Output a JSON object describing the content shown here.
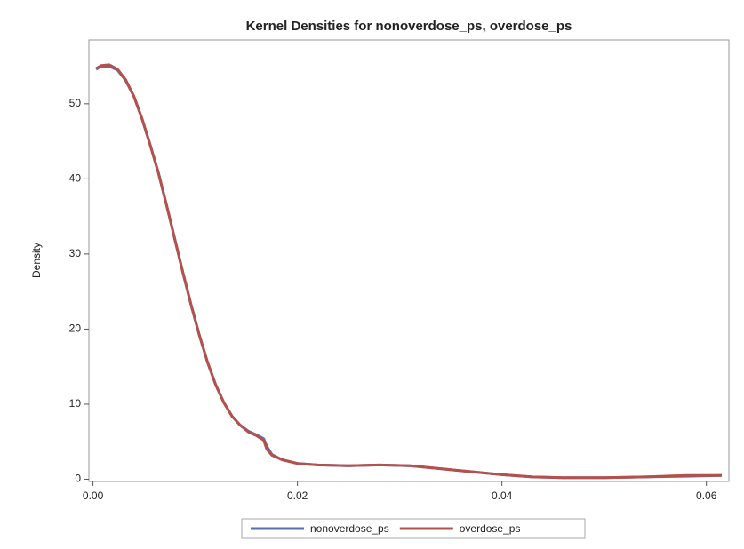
{
  "chart_data": {
    "type": "line",
    "title": "Kernel Densities for nonoverdose_ps, overdose_ps",
    "y_label": "Density",
    "x": [
      0.0003,
      0.0008,
      0.0016,
      0.0024,
      0.0032,
      0.004,
      0.0048,
      0.0056,
      0.0064,
      0.0072,
      0.008,
      0.0088,
      0.0096,
      0.0104,
      0.0112,
      0.012,
      0.0128,
      0.0136,
      0.0144,
      0.0152,
      0.016,
      0.0167,
      0.017,
      0.0175,
      0.0185,
      0.02,
      0.022,
      0.025,
      0.028,
      0.031,
      0.034,
      0.037,
      0.04,
      0.043,
      0.046,
      0.05,
      0.054,
      0.058,
      0.0615
    ],
    "series": [
      {
        "name": "nonoverdose_ps",
        "color": "#5a6fad",
        "values": [
          54.6,
          55.0,
          55.0,
          54.5,
          53.1,
          51.0,
          48.0,
          44.5,
          40.8,
          36.5,
          32.0,
          27.5,
          23.2,
          19.2,
          15.6,
          12.6,
          10.2,
          8.4,
          7.2,
          6.4,
          5.9,
          5.4,
          4.4,
          3.3,
          2.6,
          2.1,
          1.9,
          1.8,
          1.9,
          1.8,
          1.4,
          1.0,
          0.6,
          0.3,
          0.2,
          0.2,
          0.3,
          0.4,
          0.5
        ]
      },
      {
        "name": "overdose_ps",
        "color": "#b5504a",
        "values": [
          54.7,
          55.1,
          55.2,
          54.6,
          53.2,
          51.0,
          48.0,
          44.5,
          40.8,
          36.5,
          32.0,
          27.5,
          23.2,
          19.2,
          15.6,
          12.6,
          10.2,
          8.4,
          7.2,
          6.3,
          5.8,
          5.2,
          4.0,
          3.2,
          2.6,
          2.1,
          1.9,
          1.8,
          1.9,
          1.8,
          1.4,
          1.0,
          0.6,
          0.3,
          0.2,
          0.2,
          0.3,
          0.5,
          0.5
        ]
      }
    ],
    "xlim": [
      -0.0004,
      0.0622
    ],
    "xticks": [
      {
        "value": 0,
        "label": "0.00"
      },
      0.02,
      0.04,
      0.06
    ],
    "ylim": [
      -0.3,
      58.5
    ],
    "yticks": [
      0,
      10,
      20,
      30,
      40,
      50
    ],
    "legend": "bottom"
  }
}
